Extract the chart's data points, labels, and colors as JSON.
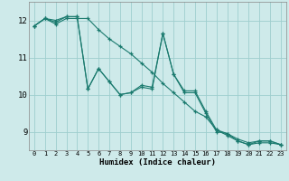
{
  "xlabel": "Humidex (Indice chaleur)",
  "bg_color": "#ceeaea",
  "grid_color": "#9ecece",
  "line_color": "#1a7a6e",
  "xlim": [
    -0.5,
    23.5
  ],
  "ylim": [
    8.5,
    12.5
  ],
  "yticks": [
    9,
    10,
    11,
    12
  ],
  "xticks": [
    0,
    1,
    2,
    3,
    4,
    5,
    6,
    7,
    8,
    9,
    10,
    11,
    12,
    13,
    14,
    15,
    16,
    17,
    18,
    19,
    20,
    21,
    22,
    23
  ],
  "series1_y": [
    11.85,
    12.05,
    12.0,
    12.1,
    12.1,
    10.15,
    10.7,
    10.35,
    10.0,
    10.05,
    10.2,
    10.15,
    11.65,
    10.55,
    10.05,
    10.05,
    9.5,
    9.0,
    8.95,
    8.75,
    8.65,
    8.75,
    8.75,
    8.65
  ],
  "series2_y": [
    11.85,
    12.05,
    11.95,
    12.1,
    12.1,
    10.15,
    10.7,
    10.35,
    10.0,
    10.05,
    10.25,
    10.2,
    11.65,
    10.55,
    10.1,
    10.1,
    9.55,
    9.05,
    8.95,
    8.8,
    8.7,
    8.75,
    8.75,
    8.65
  ],
  "series3_y": [
    11.85,
    12.05,
    11.9,
    12.05,
    12.05,
    12.05,
    11.75,
    11.5,
    11.3,
    11.1,
    10.85,
    10.6,
    10.3,
    10.05,
    9.8,
    9.55,
    9.4,
    9.05,
    8.9,
    8.75,
    8.65,
    8.7,
    8.7,
    8.65
  ]
}
